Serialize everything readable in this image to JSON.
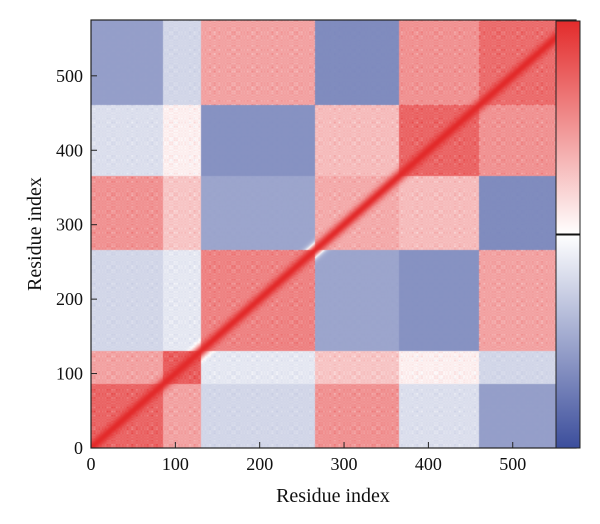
{
  "chart_data": {
    "type": "heatmap",
    "title": "",
    "xlabel": "Residue index",
    "ylabel": "Residue index",
    "xlim": [
      0,
      575
    ],
    "ylim": [
      0,
      575
    ],
    "x_ticks": [
      0,
      100,
      200,
      300,
      400,
      500
    ],
    "y_ticks": [
      0,
      100,
      200,
      300,
      400,
      500
    ],
    "colorbar": {
      "colors": [
        "#3c4e9c",
        "#ffffff",
        "#e32b2b"
      ],
      "tick_labels": [],
      "marker_fraction": 0.5
    },
    "domains": [
      [
        0,
        85
      ],
      [
        85,
        130
      ],
      [
        130,
        265
      ],
      [
        265,
        365
      ],
      [
        365,
        460
      ],
      [
        460,
        575
      ]
    ],
    "domain_correlation": [
      [
        0.85,
        0.45,
        -0.2,
        0.55,
        -0.15,
        -0.6
      ],
      [
        0.45,
        0.9,
        -0.1,
        0.25,
        0.05,
        -0.2
      ],
      [
        -0.2,
        -0.1,
        0.65,
        -0.55,
        -0.7,
        0.45
      ],
      [
        0.55,
        0.25,
        -0.55,
        0.4,
        0.3,
        -0.75
      ],
      [
        -0.15,
        0.05,
        -0.7,
        0.3,
        0.85,
        0.55
      ],
      [
        -0.6,
        -0.2,
        0.45,
        -0.75,
        0.55,
        0.8
      ]
    ]
  }
}
